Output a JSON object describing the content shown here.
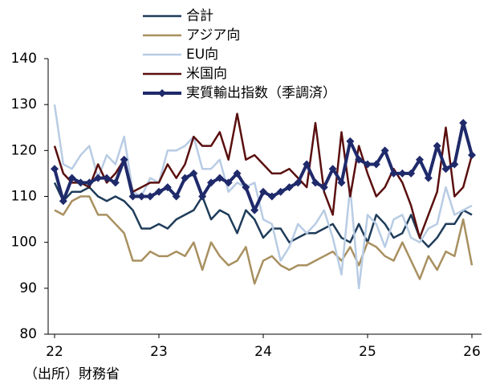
{
  "chart_data": {
    "type": "line",
    "categories": [
      "22",
      null,
      null,
      null,
      null,
      null,
      null,
      null,
      null,
      null,
      null,
      null,
      "23",
      null,
      null,
      null,
      null,
      null,
      null,
      null,
      null,
      null,
      null,
      null,
      "24",
      null,
      null,
      null,
      null,
      null,
      null,
      null,
      null,
      null,
      null,
      null,
      "25",
      null,
      null,
      null,
      null,
      null,
      null,
      null,
      null,
      null,
      null,
      null,
      "26"
    ],
    "series": [
      {
        "name": "合計",
        "color": "#1f3c5a",
        "width": 2.5,
        "values": [
          113,
          109,
          111,
          111,
          112,
          110,
          109,
          110,
          109,
          107,
          103,
          103,
          104,
          103,
          105,
          106,
          107,
          110,
          105,
          107,
          106,
          102,
          107,
          105,
          101,
          103,
          103,
          100,
          101,
          102,
          102,
          103,
          104,
          101,
          100,
          104,
          100,
          106,
          104,
          101,
          102,
          106,
          101,
          99,
          101,
          104,
          104,
          107,
          106
        ]
      },
      {
        "name": "アジア向",
        "color": "#a89060",
        "width": 2.5,
        "values": [
          107,
          106,
          109,
          110,
          110,
          106,
          106,
          104,
          102,
          96,
          96,
          98,
          97,
          97,
          98,
          97,
          100,
          94,
          100,
          97,
          95,
          96,
          99,
          91,
          96,
          97,
          95,
          94,
          95,
          95,
          96,
          97,
          98,
          96,
          99,
          95,
          100,
          99,
          97,
          96,
          100,
          96,
          92,
          97,
          94,
          98,
          97,
          105,
          95
        ]
      },
      {
        "name": "EU向",
        "color": "#b8cce4",
        "width": 2.5,
        "values": [
          130,
          117,
          116,
          119,
          121,
          114,
          119,
          117,
          123,
          111,
          110,
          114,
          113,
          120,
          120,
          121,
          123,
          116,
          116,
          118,
          111,
          113,
          112,
          113,
          105,
          104,
          96,
          99,
          104,
          102,
          104,
          107,
          101,
          93,
          112,
          90,
          106,
          104,
          99,
          105,
          106,
          101,
          100,
          103,
          104,
          112,
          106,
          107,
          108
        ]
      },
      {
        "name": "米国向",
        "color": "#5a0f0f",
        "width": 2.5,
        "values": [
          121,
          115,
          113,
          113,
          112,
          117,
          113,
          115,
          118,
          111,
          112,
          113,
          113,
          117,
          114,
          117,
          123,
          121,
          121,
          124,
          118,
          128,
          118,
          119,
          117,
          115,
          115,
          116,
          114,
          112,
          126,
          111,
          106,
          124,
          110,
          121,
          115,
          110,
          112,
          116,
          113,
          108,
          101,
          106,
          111,
          125,
          110,
          112,
          119
        ]
      },
      {
        "name": "実質輸出指数（季調済）",
        "color": "#1f2a6b",
        "width": 4,
        "marker": "diamond",
        "values": [
          116,
          109,
          114,
          113,
          113,
          114,
          114,
          113,
          118,
          110,
          110,
          110,
          111,
          112,
          110,
          114,
          115,
          110,
          113,
          114,
          113,
          115,
          112,
          107,
          111,
          110,
          111,
          112,
          113,
          117,
          113,
          112,
          116,
          113,
          122,
          118,
          117,
          117,
          120,
          115,
          115,
          115,
          118,
          114,
          121,
          116,
          117,
          126,
          119
        ]
      }
    ],
    "ylim": [
      80,
      140
    ],
    "yticks": [
      80,
      90,
      100,
      110,
      120,
      130,
      140
    ],
    "note": "（出所）財務省"
  }
}
